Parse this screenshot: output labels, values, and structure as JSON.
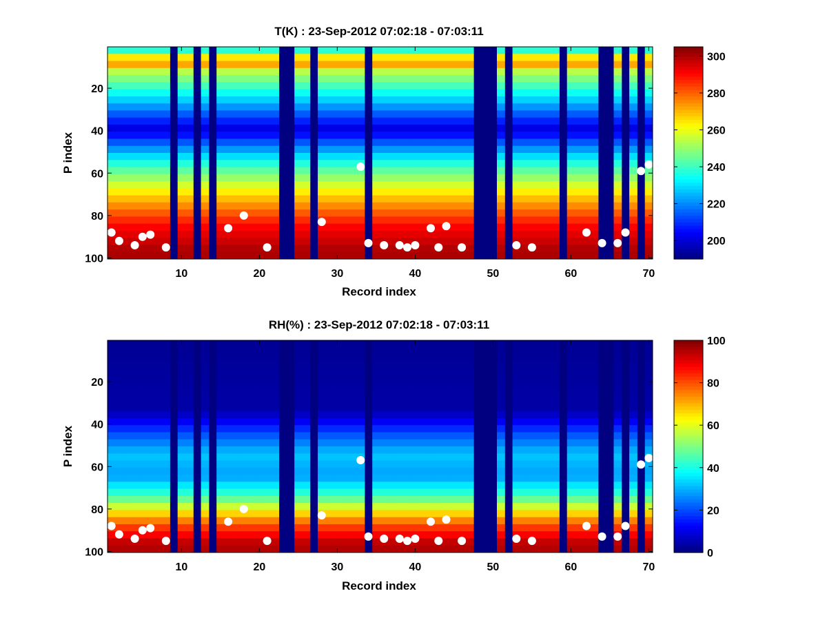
{
  "chart_data": [
    {
      "type": "heatmap",
      "title": "T(K) : 23-Sep-2012 07:02:18 - 07:03:11",
      "xlabel": "Record index",
      "ylabel": "P index",
      "xlim": [
        1,
        70
      ],
      "ylim": [
        1,
        100
      ],
      "y_reversed": true,
      "xticks": [
        10,
        20,
        30,
        40,
        50,
        60,
        70
      ],
      "yticks": [
        20,
        40,
        60,
        80,
        100
      ],
      "colormap": "jet",
      "clim": [
        190,
        305
      ],
      "colorbar_ticks": [
        200,
        220,
        240,
        260,
        280,
        300
      ],
      "missing_records": [
        9,
        12,
        14,
        23,
        24,
        27,
        34,
        48,
        49,
        50,
        52,
        59,
        64,
        65,
        67,
        69
      ],
      "profile_profile": {
        "p_index": [
          1,
          8,
          12,
          25,
          40,
          55,
          70,
          85,
          97
        ],
        "value": [
          225,
          280,
          255,
          230,
          200,
          235,
          265,
          290,
          300
        ]
      },
      "markers": {
        "record": [
          1,
          2,
          4,
          5,
          6,
          8,
          16,
          18,
          21,
          28,
          33,
          34,
          36,
          38,
          39,
          40,
          42,
          43,
          44,
          46,
          53,
          55,
          62,
          64,
          66,
          67,
          69,
          70
        ],
        "p_index": [
          88,
          92,
          94,
          90,
          89,
          95,
          86,
          80,
          95,
          83,
          57,
          93,
          94,
          94,
          95,
          94,
          86,
          95,
          85,
          95,
          94,
          95,
          88,
          93,
          93,
          88,
          59,
          56
        ]
      },
      "marker_color": "#ffffff"
    },
    {
      "type": "heatmap",
      "title": "RH(%) : 23-Sep-2012 07:02:18 - 07:03:11",
      "xlabel": "Record index",
      "ylabel": "P index",
      "xlim": [
        1,
        70
      ],
      "ylim": [
        1,
        100
      ],
      "y_reversed": true,
      "xticks": [
        10,
        20,
        30,
        40,
        50,
        60,
        70
      ],
      "yticks": [
        20,
        40,
        60,
        80,
        100
      ],
      "colormap": "jet",
      "clim": [
        0,
        100
      ],
      "colorbar_ticks": [
        0,
        20,
        40,
        60,
        80,
        100
      ],
      "missing_records": [
        9,
        12,
        14,
        23,
        24,
        27,
        34,
        48,
        49,
        50,
        52,
        59,
        64,
        65,
        67,
        69
      ],
      "profile_profile": {
        "p_index": [
          1,
          34,
          45,
          55,
          65,
          75,
          82,
          88,
          97
        ],
        "value": [
          2,
          4,
          20,
          32,
          28,
          45,
          65,
          80,
          95
        ]
      },
      "markers": {
        "record": [
          1,
          2,
          4,
          5,
          6,
          8,
          16,
          18,
          21,
          28,
          33,
          34,
          36,
          38,
          39,
          40,
          42,
          43,
          44,
          46,
          53,
          55,
          62,
          64,
          66,
          67,
          69,
          70
        ],
        "p_index": [
          88,
          92,
          94,
          90,
          89,
          95,
          86,
          80,
          95,
          83,
          57,
          93,
          94,
          94,
          95,
          94,
          86,
          95,
          85,
          95,
          94,
          95,
          88,
          93,
          93,
          88,
          59,
          56
        ]
      },
      "marker_color": "#ffffff"
    }
  ]
}
